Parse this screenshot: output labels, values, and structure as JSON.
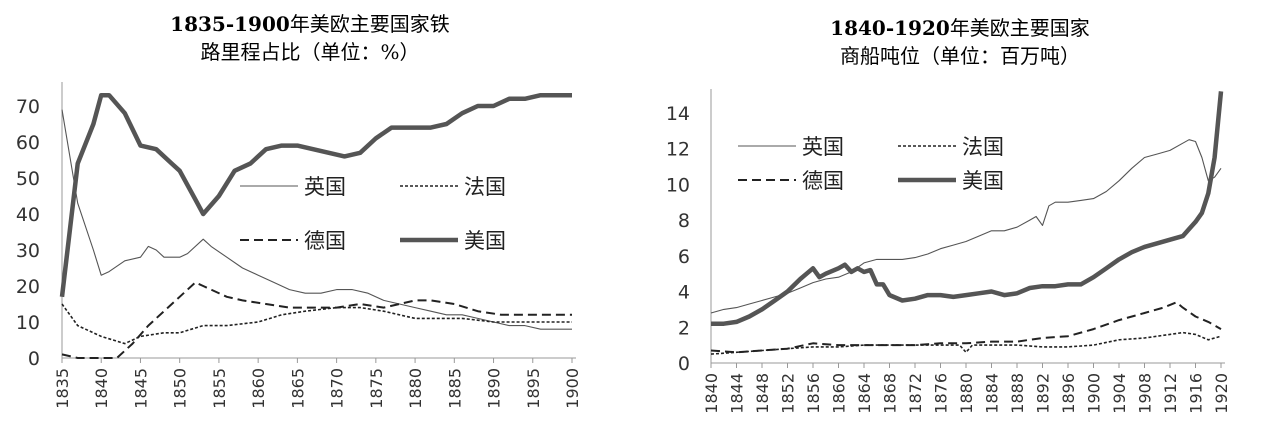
{
  "chart_data": [
    {
      "type": "line",
      "title_years": "1835-1900",
      "title_line1_rest": "年美欧主要国家铁",
      "title_line2": "路里程占比（单位：%）",
      "ylim": [
        0,
        75
      ],
      "yticks": [
        0,
        10,
        20,
        30,
        40,
        50,
        60,
        70
      ],
      "xlim": [
        1835,
        1900
      ],
      "xticks": [
        1835,
        1840,
        1845,
        1850,
        1855,
        1860,
        1865,
        1870,
        1875,
        1880,
        1885,
        1890,
        1895,
        1900
      ],
      "legend_position": "center-right",
      "series": [
        {
          "name": "英国",
          "style": "thin",
          "x": [
            1835,
            1837,
            1839,
            1840,
            1841,
            1843,
            1845,
            1846,
            1847,
            1848,
            1850,
            1851,
            1853,
            1854,
            1856,
            1858,
            1860,
            1862,
            1864,
            1866,
            1868,
            1870,
            1872,
            1874,
            1876,
            1878,
            1880,
            1882,
            1884,
            1886,
            1888,
            1890,
            1892,
            1894,
            1896,
            1898,
            1900
          ],
          "y": [
            69,
            43,
            30,
            23,
            24,
            27,
            28,
            31,
            30,
            28,
            28,
            29,
            33,
            31,
            28,
            25,
            23,
            21,
            19,
            18,
            18,
            19,
            19,
            18,
            16,
            15,
            14,
            13,
            12,
            12,
            11,
            10,
            9,
            9,
            8,
            8,
            8
          ]
        },
        {
          "name": "法国",
          "style": "dotted",
          "x": [
            1835,
            1837,
            1840,
            1843,
            1845,
            1848,
            1850,
            1853,
            1856,
            1860,
            1863,
            1866,
            1870,
            1873,
            1876,
            1880,
            1883,
            1886,
            1890,
            1894,
            1897,
            1900
          ],
          "y": [
            15,
            9,
            6,
            4,
            6,
            7,
            7,
            9,
            9,
            10,
            12,
            13,
            14,
            14,
            13,
            11,
            11,
            11,
            10,
            10,
            10,
            10
          ]
        },
        {
          "name": "德国",
          "style": "dashed",
          "x": [
            1835,
            1837,
            1840,
            1842,
            1844,
            1846,
            1848,
            1850,
            1852,
            1853,
            1856,
            1858,
            1861,
            1864,
            1867,
            1870,
            1873,
            1876,
            1878,
            1880,
            1882,
            1885,
            1888,
            1891,
            1894,
            1897,
            1900
          ],
          "y": [
            1,
            0,
            0,
            0,
            4,
            9,
            13,
            17,
            21,
            20,
            17,
            16,
            15,
            14,
            14,
            14,
            15,
            14,
            15,
            16,
            16,
            15,
            13,
            12,
            12,
            12,
            12
          ]
        },
        {
          "name": "美国",
          "style": "thick",
          "x": [
            1835,
            1837,
            1839,
            1840,
            1841,
            1843,
            1845,
            1847,
            1849,
            1850,
            1852,
            1853,
            1855,
            1857,
            1859,
            1861,
            1863,
            1865,
            1867,
            1869,
            1871,
            1873,
            1875,
            1877,
            1879,
            1882,
            1884,
            1886,
            1888,
            1890,
            1892,
            1894,
            1896,
            1898,
            1900
          ],
          "y": [
            17,
            54,
            65,
            73,
            73,
            68,
            59,
            58,
            54,
            52,
            44,
            40,
            45,
            52,
            54,
            58,
            59,
            59,
            58,
            57,
            56,
            57,
            61,
            64,
            64,
            64,
            65,
            68,
            70,
            70,
            72,
            72,
            73,
            73,
            73
          ]
        }
      ]
    },
    {
      "type": "line",
      "title_years": "1840-1920",
      "title_line1_rest": "年美欧主要国家",
      "title_line2": "商船吨位（单位：百万吨）",
      "ylim": [
        0,
        15
      ],
      "yticks": [
        0,
        2,
        4,
        6,
        8,
        10,
        12,
        14
      ],
      "xlim": [
        1840,
        1920
      ],
      "xticks": [
        1840,
        1844,
        1848,
        1852,
        1856,
        1860,
        1864,
        1868,
        1872,
        1876,
        1880,
        1884,
        1888,
        1892,
        1896,
        1900,
        1904,
        1908,
        1912,
        1916,
        1920
      ],
      "legend_position": "top-left",
      "series": [
        {
          "name": "英国",
          "style": "thin",
          "x": [
            1840,
            1842,
            1844,
            1846,
            1848,
            1850,
            1852,
            1854,
            1856,
            1858,
            1860,
            1862,
            1864,
            1866,
            1868,
            1870,
            1872,
            1874,
            1876,
            1878,
            1880,
            1882,
            1884,
            1886,
            1888,
            1890,
            1891,
            1892,
            1893,
            1894,
            1896,
            1898,
            1900,
            1902,
            1904,
            1906,
            1908,
            1910,
            1912,
            1914,
            1915,
            1916,
            1917,
            1918,
            1919,
            1920
          ],
          "y": [
            2.8,
            3.0,
            3.1,
            3.3,
            3.5,
            3.7,
            3.9,
            4.2,
            4.5,
            4.7,
            4.8,
            5.1,
            5.6,
            5.8,
            5.8,
            5.8,
            5.9,
            6.1,
            6.4,
            6.6,
            6.8,
            7.1,
            7.4,
            7.4,
            7.6,
            8.0,
            8.2,
            7.7,
            8.8,
            9.0,
            9.0,
            9.1,
            9.2,
            9.6,
            10.2,
            10.9,
            11.5,
            11.7,
            11.9,
            12.3,
            12.5,
            12.4,
            11.5,
            10.2,
            10.4,
            10.9
          ]
        },
        {
          "name": "法国",
          "style": "dotted",
          "x": [
            1840,
            1844,
            1848,
            1852,
            1856,
            1860,
            1864,
            1868,
            1872,
            1876,
            1879,
            1880,
            1881,
            1884,
            1888,
            1892,
            1896,
            1900,
            1904,
            1908,
            1912,
            1914,
            1916,
            1918,
            1920
          ],
          "y": [
            0.5,
            0.6,
            0.7,
            0.8,
            0.9,
            0.9,
            1.0,
            1.0,
            1.0,
            1.0,
            1.0,
            0.6,
            1.0,
            1.0,
            1.0,
            0.9,
            0.9,
            1.0,
            1.3,
            1.4,
            1.6,
            1.7,
            1.6,
            1.3,
            1.5
          ]
        },
        {
          "name": "德国",
          "style": "dashed",
          "x": [
            1840,
            1844,
            1848,
            1852,
            1856,
            1860,
            1864,
            1868,
            1872,
            1876,
            1880,
            1884,
            1888,
            1892,
            1896,
            1900,
            1904,
            1908,
            1911,
            1913,
            1914,
            1916,
            1918,
            1920
          ],
          "y": [
            0.7,
            0.6,
            0.7,
            0.8,
            1.1,
            1.0,
            1.0,
            1.0,
            1.0,
            1.1,
            1.1,
            1.2,
            1.2,
            1.4,
            1.5,
            1.9,
            2.4,
            2.8,
            3.1,
            3.4,
            3.1,
            2.6,
            2.3,
            1.9
          ]
        },
        {
          "name": "美国",
          "style": "thick",
          "x": [
            1840,
            1842,
            1844,
            1846,
            1848,
            1850,
            1852,
            1854,
            1855,
            1856,
            1857,
            1858,
            1860,
            1861,
            1862,
            1863,
            1864,
            1865,
            1866,
            1867,
            1868,
            1870,
            1872,
            1874,
            1876,
            1878,
            1880,
            1882,
            1884,
            1886,
            1888,
            1890,
            1892,
            1894,
            1896,
            1898,
            1900,
            1902,
            1904,
            1906,
            1908,
            1910,
            1912,
            1914,
            1915,
            1916,
            1917,
            1918,
            1919,
            1920
          ],
          "y": [
            2.2,
            2.2,
            2.3,
            2.6,
            3.0,
            3.5,
            4.0,
            4.7,
            5.0,
            5.3,
            4.8,
            5.0,
            5.3,
            5.5,
            5.1,
            5.3,
            5.1,
            5.2,
            4.4,
            4.4,
            3.8,
            3.5,
            3.6,
            3.8,
            3.8,
            3.7,
            3.8,
            3.9,
            4.0,
            3.8,
            3.9,
            4.2,
            4.3,
            4.3,
            4.4,
            4.4,
            4.8,
            5.3,
            5.8,
            6.2,
            6.5,
            6.7,
            6.9,
            7.1,
            7.5,
            7.9,
            8.4,
            9.5,
            11.5,
            15.2
          ]
        }
      ]
    }
  ]
}
